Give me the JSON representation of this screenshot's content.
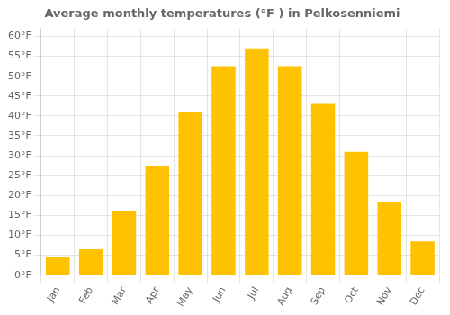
{
  "chart_data": {
    "type": "bar",
    "title": "Average monthly temperatures (°F ) in Pelkosenniemi",
    "categories": [
      "Jan",
      "Feb",
      "Mar",
      "Apr",
      "May",
      "Jun",
      "Jul",
      "Aug",
      "Sep",
      "Oct",
      "Nov",
      "Dec"
    ],
    "values": [
      4.5,
      6.5,
      16.2,
      27.5,
      41.0,
      52.5,
      57.0,
      52.5,
      43.0,
      31.0,
      18.5,
      8.5
    ],
    "color": "#FFC200",
    "ylim": [
      0,
      62
    ],
    "yticks": [
      {
        "value": 0,
        "label": "0°F"
      },
      {
        "value": 5,
        "label": "5°F"
      },
      {
        "value": 10,
        "label": "10°F"
      },
      {
        "value": 15,
        "label": "15°F"
      },
      {
        "value": 20,
        "label": "20°F"
      },
      {
        "value": 25,
        "label": "25°F"
      },
      {
        "value": 30,
        "label": "30°F"
      },
      {
        "value": 35,
        "label": "35°F"
      },
      {
        "value": 40,
        "label": "40°F"
      },
      {
        "value": 45,
        "label": "45°F"
      },
      {
        "value": 50,
        "label": "50°F"
      },
      {
        "value": 55,
        "label": "55°F"
      },
      {
        "value": 60,
        "label": "60°F"
      }
    ],
    "grid": true
  }
}
